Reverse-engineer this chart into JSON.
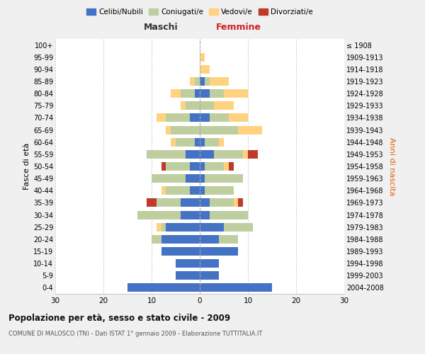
{
  "age_groups": [
    "0-4",
    "5-9",
    "10-14",
    "15-19",
    "20-24",
    "25-29",
    "30-34",
    "35-39",
    "40-44",
    "45-49",
    "50-54",
    "55-59",
    "60-64",
    "65-69",
    "70-74",
    "75-79",
    "80-84",
    "85-89",
    "90-94",
    "95-99",
    "100+"
  ],
  "birth_years": [
    "2004-2008",
    "1999-2003",
    "1994-1998",
    "1989-1993",
    "1984-1988",
    "1979-1983",
    "1974-1978",
    "1969-1973",
    "1964-1968",
    "1959-1963",
    "1954-1958",
    "1949-1953",
    "1944-1948",
    "1939-1943",
    "1934-1938",
    "1929-1933",
    "1924-1928",
    "1919-1923",
    "1914-1918",
    "1909-1913",
    "≤ 1908"
  ],
  "maschi": {
    "celibi": [
      15,
      5,
      5,
      8,
      8,
      7,
      4,
      4,
      2,
      3,
      2,
      3,
      1,
      0,
      2,
      0,
      1,
      0,
      0,
      0,
      0
    ],
    "coniugati": [
      0,
      0,
      0,
      0,
      2,
      1,
      9,
      5,
      5,
      7,
      5,
      8,
      4,
      6,
      5,
      3,
      3,
      1,
      0,
      0,
      0
    ],
    "vedovi": [
      0,
      0,
      0,
      0,
      0,
      1,
      0,
      0,
      1,
      0,
      0,
      0,
      1,
      1,
      2,
      1,
      2,
      1,
      0,
      0,
      0
    ],
    "divorziati": [
      0,
      0,
      0,
      0,
      0,
      0,
      0,
      2,
      0,
      0,
      1,
      0,
      0,
      0,
      0,
      0,
      0,
      0,
      0,
      0,
      0
    ]
  },
  "femmine": {
    "nubili": [
      15,
      4,
      4,
      8,
      4,
      5,
      2,
      2,
      1,
      1,
      1,
      3,
      1,
      0,
      2,
      0,
      2,
      1,
      0,
      0,
      0
    ],
    "coniugate": [
      0,
      0,
      0,
      0,
      4,
      6,
      8,
      5,
      6,
      8,
      4,
      6,
      3,
      8,
      4,
      3,
      3,
      1,
      0,
      0,
      0
    ],
    "vedove": [
      0,
      0,
      0,
      0,
      0,
      0,
      0,
      1,
      0,
      0,
      1,
      1,
      1,
      5,
      4,
      4,
      5,
      4,
      2,
      1,
      0
    ],
    "divorziate": [
      0,
      0,
      0,
      0,
      0,
      0,
      0,
      1,
      0,
      0,
      1,
      2,
      0,
      0,
      0,
      0,
      0,
      0,
      0,
      0,
      0
    ]
  },
  "colors": {
    "celibi_nubili": "#4472C4",
    "coniugati": "#BFCE9E",
    "vedovi": "#FFD280",
    "divorziati": "#C0392B"
  },
  "xlim": 30,
  "title": "Popolazione per età, sesso e stato civile - 2009",
  "subtitle": "COMUNE DI MALOSCO (TN) - Dati ISTAT 1° gennaio 2009 - Elaborazione TUTTITALIA.IT",
  "ylabel_left": "Fasce di età",
  "ylabel_right": "Anni di nascita",
  "xlabel_left": "Maschi",
  "xlabel_right": "Femmine",
  "bg_color": "#f0f0f0",
  "plot_bg_color": "#ffffff"
}
